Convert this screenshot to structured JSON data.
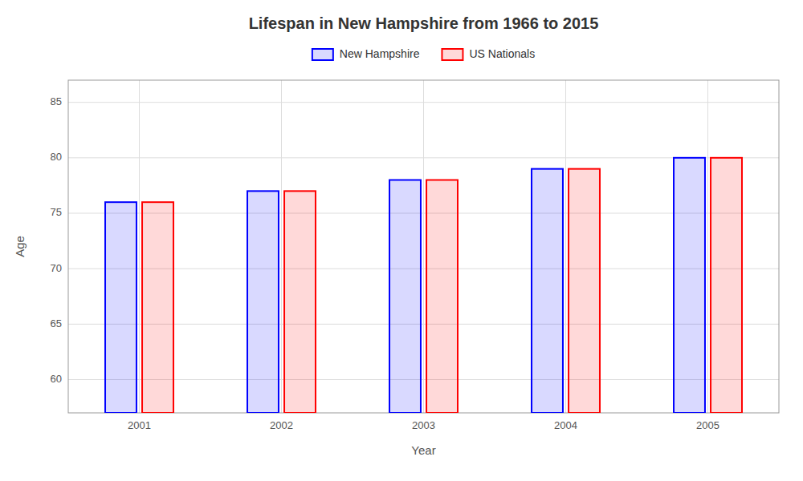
{
  "chart_data": {
    "type": "bar",
    "title": "Lifespan in New Hampshire from 1966 to 2015",
    "x_label": "Year",
    "y_label": "Age",
    "categories": [
      "2001",
      "2002",
      "2003",
      "2004",
      "2005"
    ],
    "series": [
      {
        "name": "New Hampshire",
        "color": "#0000ff",
        "values": [
          76,
          77,
          78,
          79,
          80
        ]
      },
      {
        "name": "US Nationals",
        "color": "#ff0000",
        "values": [
          76,
          77,
          78,
          79,
          80
        ]
      }
    ],
    "ylim": [
      57,
      87
    ],
    "yticks": [
      60,
      65,
      70,
      75,
      80,
      85
    ],
    "grid": true,
    "legend": "top"
  }
}
